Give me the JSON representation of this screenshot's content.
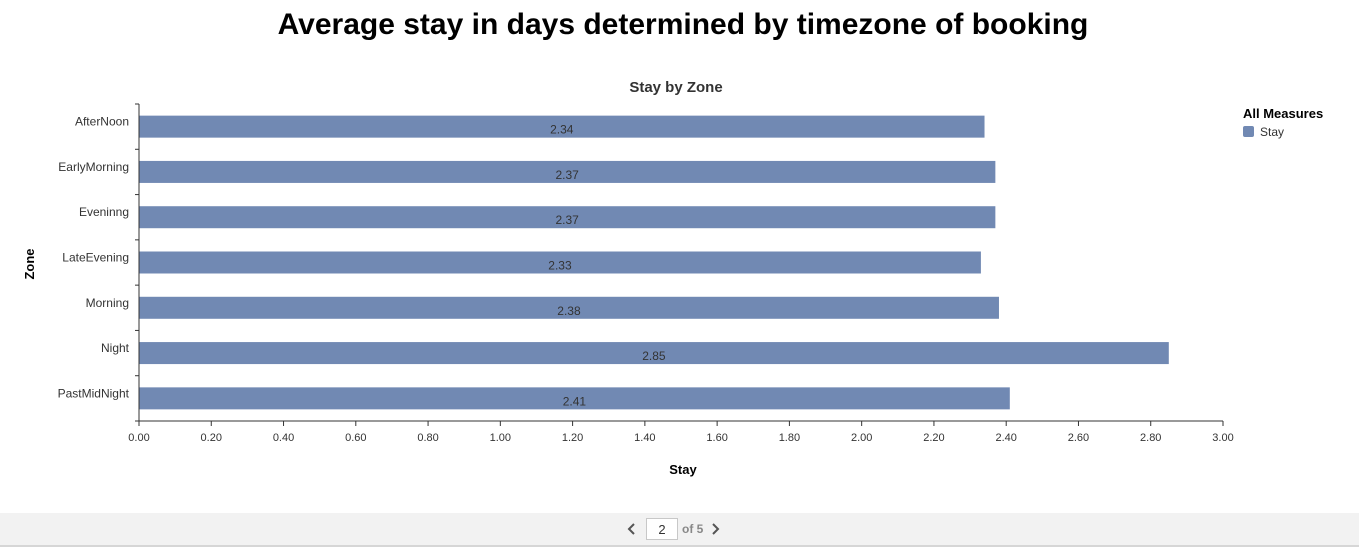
{
  "page": {
    "title": "Average stay in days determined by timezone of booking"
  },
  "chart_data": {
    "type": "bar",
    "orientation": "horizontal",
    "title": "Stay by Zone",
    "xlabel": "Stay",
    "ylabel": "Zone",
    "categories": [
      "AfterNoon",
      "EarlyMorning",
      "Eveninng",
      "LateEvening",
      "Morning",
      "Night",
      "PastMidNight"
    ],
    "series": [
      {
        "name": "Stay",
        "color": "#7189b3",
        "values": [
          2.34,
          2.37,
          2.37,
          2.33,
          2.38,
          2.85,
          2.41
        ]
      }
    ],
    "data_labels": [
      "2.34",
      "2.37",
      "2.37",
      "2.33",
      "2.38",
      "2.85",
      "2.41"
    ],
    "xlim": [
      0,
      3.0
    ],
    "xticks": [
      "0.00",
      "0.20",
      "0.40",
      "0.60",
      "0.80",
      "1.00",
      "1.20",
      "1.40",
      "1.60",
      "1.80",
      "2.00",
      "2.20",
      "2.40",
      "2.60",
      "2.80",
      "3.00"
    ],
    "grid": false,
    "legend": {
      "title": "All Measures",
      "position": "top-right",
      "items": [
        "Stay"
      ]
    }
  },
  "pager": {
    "current_page": "2",
    "of_text": "of 5",
    "prev_icon": "chevron-left-icon",
    "next_icon": "chevron-right-icon"
  }
}
